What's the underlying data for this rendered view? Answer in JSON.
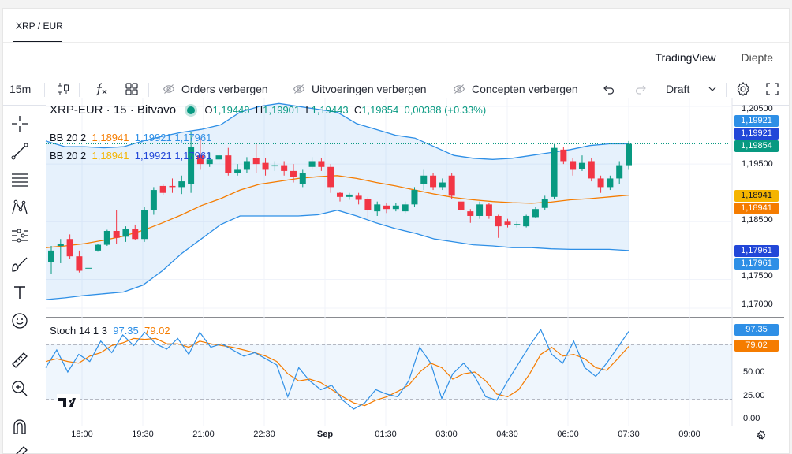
{
  "tab": {
    "label": "XRP / EUR"
  },
  "source_tabs": {
    "tradingview": "TradingView",
    "depth": "Diepte"
  },
  "toolbar": {
    "interval": "15m",
    "hide_orders": "Orders verbergen",
    "hide_executions": "Uitvoeringen verbergen",
    "hide_drafts": "Concepten verbergen",
    "draft": "Draft"
  },
  "legend": {
    "symbol": "XRP-EUR · 15 · Bitvavo",
    "o_label": "O",
    "o": "1,19448",
    "h_label": "H",
    "h": "1,19901",
    "l_label": "L",
    "l": "1,19443",
    "c_label": "C",
    "c": "1,19854",
    "change": "0,00388 (+0.33%)",
    "bb1": {
      "name": "BB 20 2",
      "basis": "1,18941",
      "upper": "1,19921",
      "lower": "1,17961"
    },
    "bb2": {
      "name": "BB 20 2",
      "basis": "1,18941",
      "upper": "1,19921",
      "lower": "1,17961"
    },
    "stoch": {
      "name": "Stoch 14 1 3",
      "k": "97.35",
      "d": "79.02"
    }
  },
  "price_axis": {
    "ticks": [
      "1,20500",
      "1,19500",
      "1,18500",
      "1,17500",
      "1,17000"
    ],
    "tags": [
      {
        "text": "1,19921",
        "color": "#2e8fe6"
      },
      {
        "text": "1,19921",
        "color": "#2247d8"
      },
      {
        "text": "1,19854",
        "color": "#089981"
      },
      {
        "text": "1,18941",
        "color": "#f5b400"
      },
      {
        "text": "1,18941",
        "color": "#f57c00"
      },
      {
        "text": "1,17961",
        "color": "#2247d8"
      },
      {
        "text": "1,17961",
        "color": "#2e8fe6"
      }
    ]
  },
  "stoch_axis": {
    "ticks": [
      "50.00",
      "25.00",
      "0.00"
    ],
    "tags": [
      {
        "text": "97.35",
        "color": "#2e8fe6"
      },
      {
        "text": "79.02",
        "color": "#f57c00"
      }
    ]
  },
  "time_axis": [
    "18:00",
    "19:30",
    "21:00",
    "22:30",
    "Sep",
    "01:30",
    "03:00",
    "04:30",
    "06:00",
    "07:30",
    "09:00"
  ],
  "colors": {
    "up": "#089981",
    "down": "#f23645",
    "bb_band": "#2e8fe6",
    "bb_basis": "#f57c00",
    "stoch_k": "#2e8fe6",
    "stoch_d": "#f57c00"
  },
  "chart_data": {
    "type": "candlestick",
    "price_range": [
      1.1685,
      1.2065
    ],
    "candles": [
      [
        1.178,
        1.18,
        1.176,
        1.1808
      ],
      [
        1.1808,
        1.1812,
        1.1778,
        1.182
      ],
      [
        1.182,
        1.179,
        1.1785,
        1.1828
      ],
      [
        1.179,
        1.1765,
        1.1762,
        1.18
      ],
      [
        1.177,
        1.177,
        1.177,
        1.177
      ],
      [
        1.18,
        1.181,
        1.1798,
        1.1812
      ],
      [
        1.181,
        1.1834,
        1.1808,
        1.1836
      ],
      [
        1.1834,
        1.1822,
        1.1812,
        1.187
      ],
      [
        1.1824,
        1.1838,
        1.1815,
        1.1842
      ],
      [
        1.1838,
        1.182,
        1.1818,
        1.1845
      ],
      [
        1.182,
        1.187,
        1.1815,
        1.1875
      ],
      [
        1.187,
        1.1905,
        1.1862,
        1.191
      ],
      [
        1.1912,
        1.19,
        1.1896,
        1.1915
      ],
      [
        1.1912,
        1.191,
        1.19,
        1.1925
      ],
      [
        1.191,
        1.192,
        1.1898,
        1.193
      ],
      [
        1.1915,
        1.198,
        1.19,
        1.2005
      ],
      [
        1.1965,
        1.195,
        1.194,
        1.1995
      ],
      [
        1.195,
        1.1958,
        1.1945,
        1.197
      ],
      [
        1.1958,
        1.1965,
        1.195,
        1.1975
      ],
      [
        1.1965,
        1.1935,
        1.193,
        1.1978
      ],
      [
        1.1935,
        1.194,
        1.193,
        1.195
      ],
      [
        1.194,
        1.1955,
        1.1935,
        1.1962
      ],
      [
        1.196,
        1.195,
        1.1935,
        1.1985
      ],
      [
        1.1952,
        1.194,
        1.193,
        1.196
      ],
      [
        1.1946,
        1.1948,
        1.1938,
        1.1955
      ],
      [
        1.1948,
        1.1938,
        1.193,
        1.1955
      ],
      [
        1.1938,
        1.1928,
        1.1918,
        1.195
      ],
      [
        1.1915,
        1.1935,
        1.191,
        1.194
      ],
      [
        1.1945,
        1.1955,
        1.194,
        1.1962
      ],
      [
        1.1955,
        1.1945,
        1.1938,
        1.196
      ],
      [
        1.1945,
        1.191,
        1.19,
        1.195
      ],
      [
        1.19,
        1.1893,
        1.1885,
        1.1902
      ],
      [
        1.1893,
        1.1897,
        1.1888,
        1.19
      ],
      [
        1.1895,
        1.1888,
        1.188,
        1.19
      ],
      [
        1.189,
        1.187,
        1.1855,
        1.1893
      ],
      [
        1.1868,
        1.188,
        1.186,
        1.1885
      ],
      [
        1.1878,
        1.1872,
        1.1865,
        1.1882
      ],
      [
        1.1872,
        1.1878,
        1.1868,
        1.1882
      ],
      [
        1.1868,
        1.188,
        1.1865,
        1.1885
      ],
      [
        1.188,
        1.1905,
        1.1875,
        1.191
      ],
      [
        1.1915,
        1.193,
        1.1905,
        1.194
      ],
      [
        1.193,
        1.191,
        1.1905,
        1.1935
      ],
      [
        1.191,
        1.1918,
        1.1905,
        1.1925
      ],
      [
        1.193,
        1.1895,
        1.189,
        1.1935
      ],
      [
        1.1885,
        1.187,
        1.186,
        1.1888
      ],
      [
        1.1868,
        1.186,
        1.1848,
        1.1872
      ],
      [
        1.186,
        1.188,
        1.1855,
        1.1885
      ],
      [
        1.188,
        1.186,
        1.1855,
        1.1882
      ],
      [
        1.186,
        1.1842,
        1.1822,
        1.1862
      ],
      [
        1.185,
        1.1845,
        1.184,
        1.1855
      ],
      [
        1.1845,
        1.1846,
        1.184,
        1.185
      ],
      [
        1.1842,
        1.186,
        1.184,
        1.1862
      ],
      [
        1.1858,
        1.1872,
        1.1856,
        1.1875
      ],
      [
        1.1874,
        1.189,
        1.187,
        1.1895
      ],
      [
        1.1893,
        1.1978,
        1.189,
        1.1985
      ],
      [
        1.1975,
        1.1955,
        1.195,
        1.198
      ],
      [
        1.1955,
        1.194,
        1.193,
        1.196
      ],
      [
        1.1942,
        1.1952,
        1.1938,
        1.1965
      ],
      [
        1.1955,
        1.1925,
        1.192,
        1.196
      ],
      [
        1.1925,
        1.191,
        1.19,
        1.193
      ],
      [
        1.191,
        1.1925,
        1.1905,
        1.193
      ],
      [
        1.1925,
        1.1948,
        1.1915,
        1.1955
      ],
      [
        1.1948,
        1.1985,
        1.194,
        1.199
      ]
    ],
    "bb_upper": [
      1.199,
      1.198,
      1.198,
      1.1978,
      1.198,
      1.199,
      1.1998,
      1.2005,
      1.201,
      1.2018,
      1.204,
      1.205,
      1.2055,
      1.205,
      1.2045,
      1.204,
      1.202,
      1.201,
      1.2,
      1.1995,
      1.198,
      1.1965,
      1.196,
      1.1958,
      1.196,
      1.1965,
      1.197,
      1.1975,
      1.1982,
      1.1985,
      1.1985
    ],
    "bb_basis": [
      1.1805,
      1.1808,
      1.1812,
      1.1818,
      1.1825,
      1.1835,
      1.1848,
      1.1862,
      1.1878,
      1.189,
      1.1905,
      1.1915,
      1.192,
      1.1925,
      1.1928,
      1.193,
      1.1925,
      1.1918,
      1.1912,
      1.1905,
      1.1898,
      1.1892,
      1.1888,
      1.1885,
      1.1883,
      1.1882,
      1.1884,
      1.1888,
      1.189,
      1.1893,
      1.1896
    ],
    "bb_lower": [
      1.1715,
      1.1718,
      1.1722,
      1.1725,
      1.1728,
      1.174,
      1.1765,
      1.1795,
      1.182,
      1.1845,
      1.186,
      1.186,
      1.186,
      1.186,
      1.1862,
      1.187,
      1.186,
      1.1848,
      1.1838,
      1.183,
      1.182,
      1.1815,
      1.181,
      1.1808,
      1.1805,
      1.1805,
      1.1803,
      1.1802,
      1.1802,
      1.1802,
      1.18
    ],
    "stoch_k": [
      55,
      75,
      50,
      70,
      62,
      85,
      72,
      92,
      80,
      95,
      82,
      76,
      88,
      70,
      95,
      78,
      82,
      75,
      68,
      72,
      65,
      58,
      22,
      55,
      40,
      30,
      35,
      18,
      8,
      15,
      30,
      25,
      22,
      40,
      78,
      60,
      20,
      48,
      60,
      45,
      22,
      18,
      40,
      60,
      80,
      98,
      70,
      60,
      85,
      55,
      45,
      60,
      78,
      96
    ],
    "stoch_d": [
      62,
      65,
      62,
      60,
      68,
      72,
      80,
      83,
      88,
      87,
      88,
      82,
      82,
      78,
      85,
      82,
      80,
      78,
      75,
      72,
      68,
      62,
      48,
      40,
      42,
      38,
      30,
      22,
      15,
      12,
      18,
      22,
      28,
      35,
      50,
      60,
      55,
      42,
      48,
      50,
      40,
      25,
      22,
      30,
      48,
      70,
      78,
      68,
      70,
      65,
      55,
      52,
      65,
      79
    ]
  }
}
